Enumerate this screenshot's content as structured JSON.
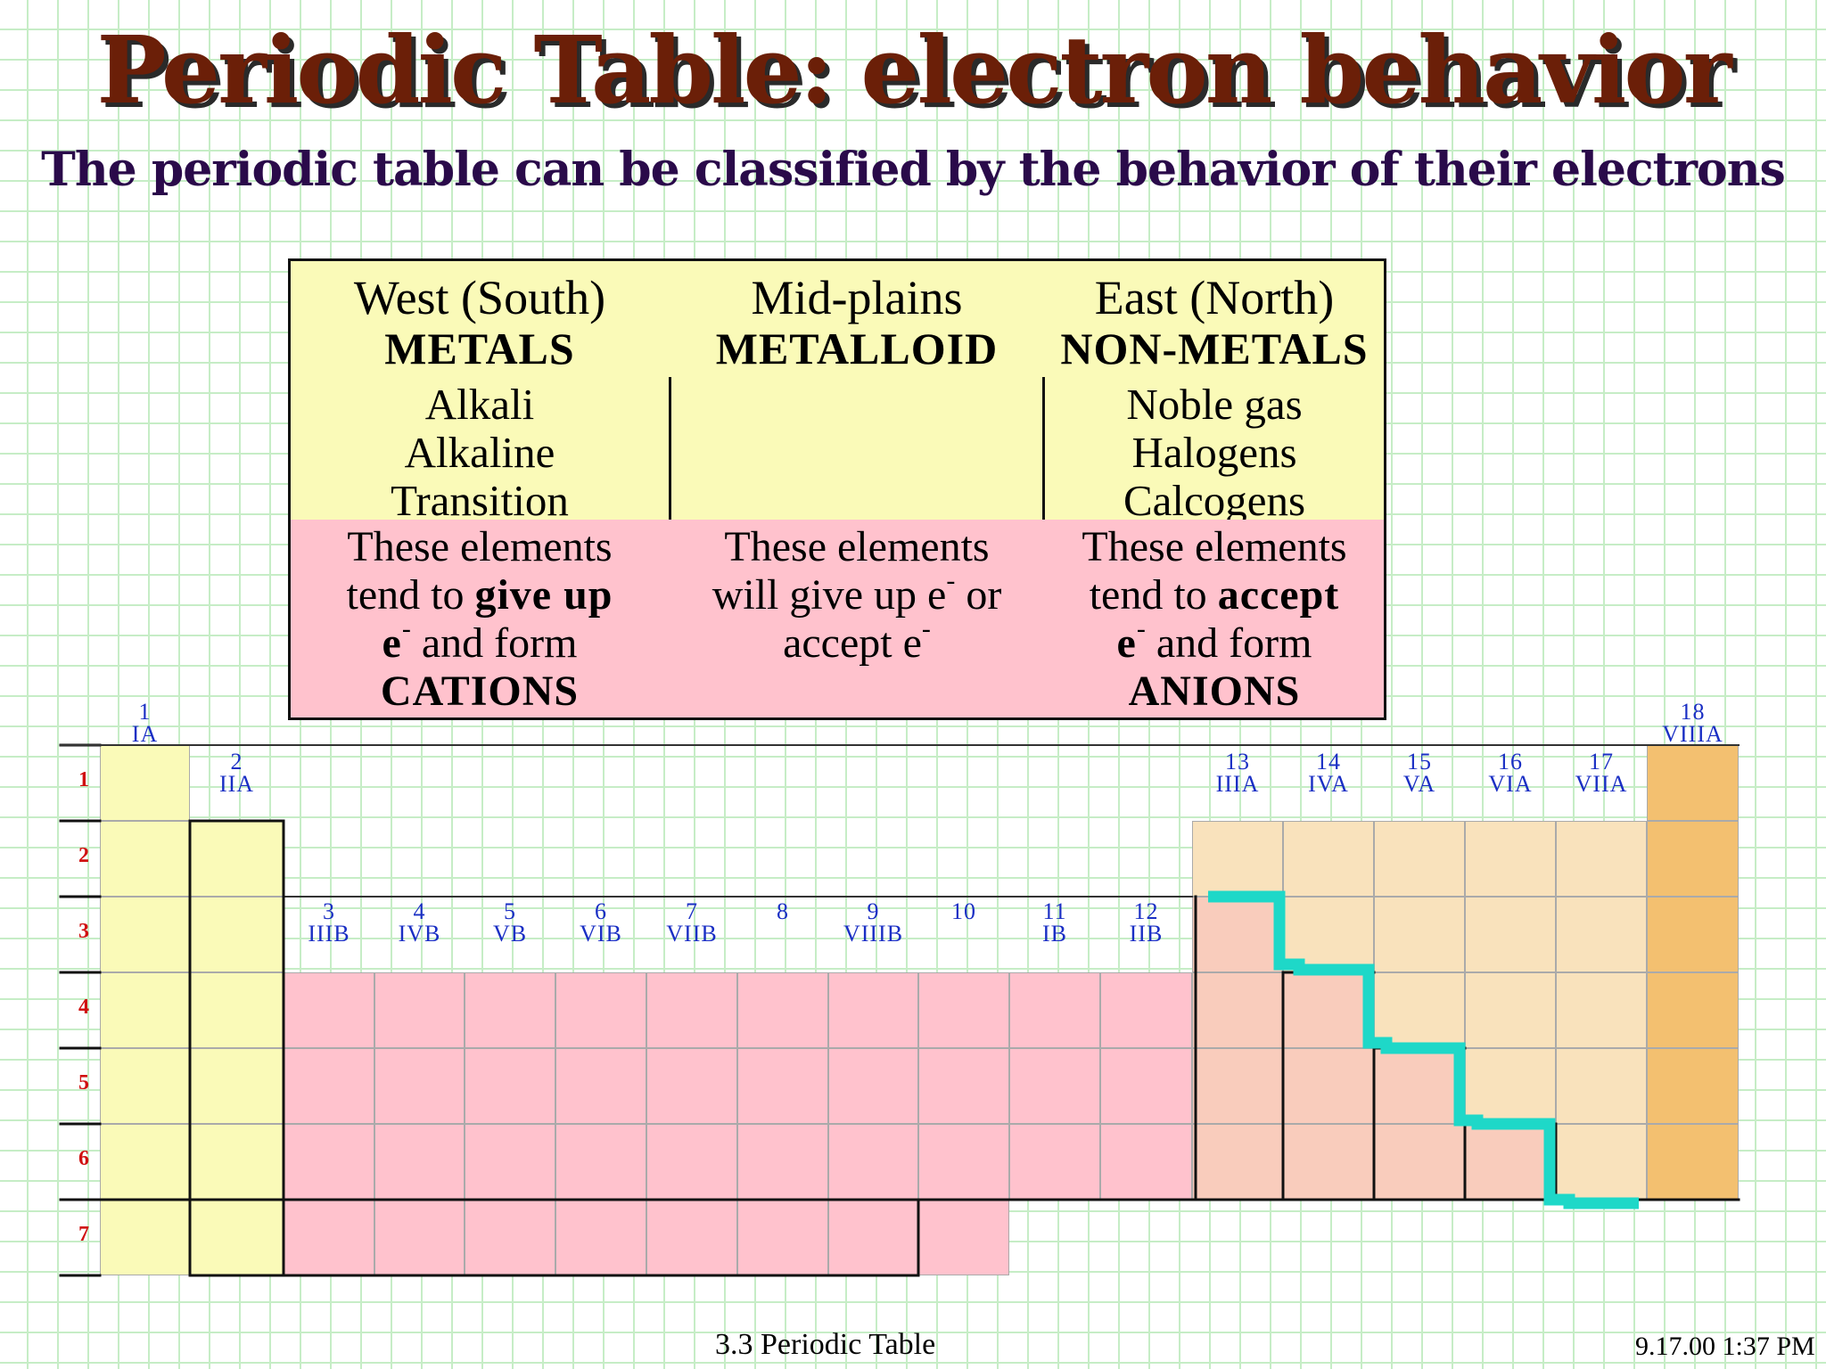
{
  "title": "Periodic Table: electron behavior",
  "subtitle": "The periodic table can be classified by the behavior of their electrons",
  "summary": {
    "west": {
      "region": "West (South)",
      "class": "METALS",
      "families": [
        "Alkali",
        "Alkaline",
        "Transition"
      ],
      "behavior": {
        "l1": "These elements",
        "l2a": "tend to ",
        "l2b": "give up",
        "l3a": "e",
        "l3sup": "-",
        "l3b": " and form",
        "l4": "CATIONS"
      }
    },
    "mid": {
      "region": "Mid-plains",
      "class": "METALLOID",
      "behavior": {
        "l1": "These elements",
        "l2a": "will give up e",
        "l2sup": "-",
        "l2b": " or",
        "l3a": "accept e",
        "l3sup": "-"
      }
    },
    "east": {
      "region": "East (North)",
      "class": "NON-METALS",
      "families": [
        "Noble gas",
        "Halogens",
        "Calcogens"
      ],
      "behavior": {
        "l1": "These elements",
        "l2a": "tend to ",
        "l2b": "accept",
        "l3a": "e",
        "l3sup": "-",
        "l3b": "  and form",
        "l4": "ANIONS"
      }
    }
  },
  "table": {
    "groups": [
      {
        "n": "1",
        "r": "IA"
      },
      {
        "n": "2",
        "r": "IIA"
      },
      {
        "n": "3",
        "r": "IIIB"
      },
      {
        "n": "4",
        "r": "IVB"
      },
      {
        "n": "5",
        "r": "VB"
      },
      {
        "n": "6",
        "r": "VIB"
      },
      {
        "n": "7",
        "r": "VIIB"
      },
      {
        "n": "8",
        "r": ""
      },
      {
        "n": "9",
        "r": "VIIIB"
      },
      {
        "n": "10",
        "r": ""
      },
      {
        "n": "11",
        "r": "IB"
      },
      {
        "n": "12",
        "r": "IIB"
      },
      {
        "n": "13",
        "r": "IIIA"
      },
      {
        "n": "14",
        "r": "IVA"
      },
      {
        "n": "15",
        "r": "VA"
      },
      {
        "n": "16",
        "r": "VIA"
      },
      {
        "n": "17",
        "r": "VIIA"
      },
      {
        "n": "18",
        "r": "VIIIA"
      }
    ],
    "periods": [
      "1",
      "2",
      "3",
      "4",
      "5",
      "6",
      "7"
    ],
    "colors": {
      "metal_s": "#fafab8",
      "transition": "#ffc2cd",
      "p_block": "#f9e2bc",
      "metalloid": "#f9ccbc",
      "noble": "#f3c070",
      "staircase": "#1ed8c8"
    }
  },
  "footer": {
    "center": "3.3  Periodic Table",
    "right": "9.17.00 1:37 PM"
  }
}
